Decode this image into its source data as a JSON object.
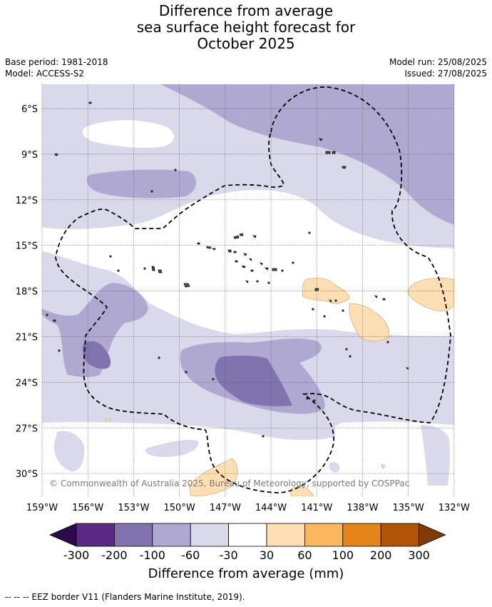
{
  "title": {
    "line1": "Difference from average",
    "line2": "sea surface height forecast for",
    "line3": "October 2025"
  },
  "meta": {
    "base_period": "Base period: 1981-2018",
    "model": "Model: ACCESS-S2",
    "model_run": "Model run: 25/08/2025",
    "issued": "Issued: 27/08/2025"
  },
  "map": {
    "lon_ticks": [
      "159°W",
      "156°W",
      "153°W",
      "150°W",
      "147°W",
      "144°W",
      "141°W",
      "138°W",
      "135°W",
      "132°W"
    ],
    "lat_ticks": [
      "6°S",
      "9°S",
      "12°S",
      "15°S",
      "18°S",
      "21°S",
      "24°S",
      "27°S",
      "30°S"
    ],
    "copyright": "© Commonwealth of Australia 2025, Bureau of Meteorology, supported by COSPPac"
  },
  "colorbar": {
    "label": "Difference from average (mm)",
    "ticks": [
      "-300",
      "-200",
      "-100",
      "-60",
      "-30",
      "30",
      "60",
      "100",
      "200",
      "300"
    ],
    "colors": {
      "below": "#2d0a4e",
      "c1": "#5b2a86",
      "c2": "#8173ad",
      "c3": "#afa8d0",
      "c4": "#d9d9eb",
      "c5": "#ffffff",
      "c6": "#fedfb4",
      "c7": "#fbb75e",
      "c8": "#e4841a",
      "c9": "#b05508",
      "above": "#7f3b08"
    }
  },
  "footnote": "--  --  -- EEZ border V11 (Flanders Marine Institute, 2019)."
}
